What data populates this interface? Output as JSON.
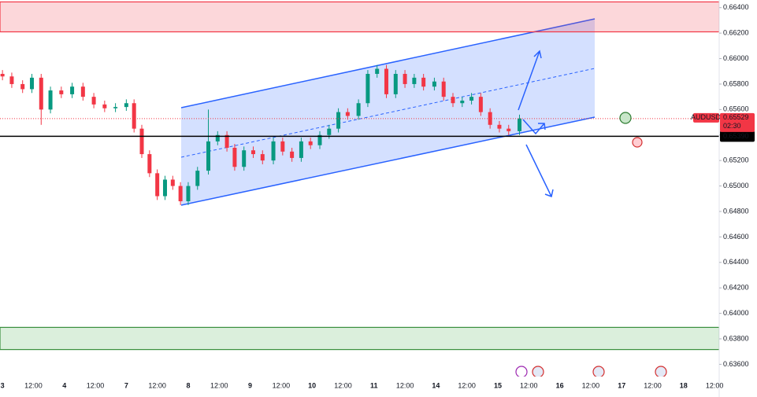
{
  "chart_data": {
    "type": "candlestick",
    "symbol": "AUDUSD",
    "categories": [
      "3",
      "12:00",
      "4",
      "12:00",
      "7",
      "12:00",
      "8",
      "12:00",
      "9",
      "12:00",
      "10",
      "12:00",
      "11",
      "12:00",
      "14",
      "12:00",
      "15",
      "12:00",
      "16",
      "12:00",
      "17",
      "12:00",
      "18",
      "12:00"
    ],
    "xlim": [
      -0.08,
      23.15
    ],
    "ylim": [
      0.6351,
      0.6646
    ],
    "yticks": [
      {
        "value": 0.664,
        "label": "0.66400"
      },
      {
        "value": 0.662,
        "label": "0.66200"
      },
      {
        "value": 0.66,
        "label": "0.66000"
      },
      {
        "value": 0.658,
        "label": "0.65800"
      },
      {
        "value": 0.656,
        "label": "0.65600"
      },
      {
        "value": 0.654,
        "label": "0.65400"
      },
      {
        "value": 0.652,
        "label": "0.65200"
      },
      {
        "value": 0.65,
        "label": "0.65000"
      },
      {
        "value": 0.648,
        "label": "0.64800"
      },
      {
        "value": 0.646,
        "label": "0.64600"
      },
      {
        "value": 0.644,
        "label": "0.64400"
      },
      {
        "value": 0.642,
        "label": "0.64200"
      },
      {
        "value": 0.64,
        "label": "0.64000"
      },
      {
        "value": 0.638,
        "label": "0.63800"
      },
      {
        "value": 0.636,
        "label": "0.63600"
      }
    ],
    "up_color": "#089981",
    "down_color": "#f23645",
    "candles": {
      "x": [
        0,
        0.3,
        0.65,
        0.95,
        1.25,
        1.55,
        1.9,
        2.25,
        2.6,
        2.95,
        3.3,
        3.65,
        4,
        4.25,
        4.5,
        4.75,
        5,
        5.25,
        5.5,
        5.75,
        6,
        6.3,
        6.65,
        6.95,
        7.25,
        7.5,
        7.8,
        8.1,
        8.4,
        8.75,
        9.05,
        9.35,
        9.65,
        9.95,
        10.25,
        10.55,
        10.85,
        11.15,
        11.5,
        11.8,
        12.1,
        12.4,
        12.7,
        13,
        13.3,
        13.6,
        13.95,
        14.25,
        14.55,
        14.85,
        15.15,
        15.45,
        15.75,
        16.05,
        16.35,
        16.7
      ],
      "open": [
        0.6588,
        0.6586,
        0.658,
        0.6576,
        0.6585,
        0.656,
        0.6575,
        0.6572,
        0.6578,
        0.657,
        0.6564,
        0.6561,
        0.6562,
        0.6565,
        0.6545,
        0.6525,
        0.651,
        0.6492,
        0.6505,
        0.65,
        0.6488,
        0.65,
        0.6512,
        0.6535,
        0.654,
        0.653,
        0.6515,
        0.6528,
        0.6525,
        0.652,
        0.6535,
        0.6527,
        0.6522,
        0.6535,
        0.6532,
        0.654,
        0.6545,
        0.6558,
        0.6555,
        0.6565,
        0.6588,
        0.6592,
        0.6572,
        0.6588,
        0.658,
        0.6585,
        0.6578,
        0.6582,
        0.657,
        0.6565,
        0.6567,
        0.657,
        0.6558,
        0.6548,
        0.6545,
        0.6543
      ],
      "high": [
        0.6591,
        0.6589,
        0.6583,
        0.6588,
        0.6588,
        0.6578,
        0.6578,
        0.6581,
        0.6581,
        0.6573,
        0.6567,
        0.6565,
        0.6568,
        0.6568,
        0.6548,
        0.6528,
        0.6513,
        0.6508,
        0.6508,
        0.6503,
        0.6503,
        0.6515,
        0.656,
        0.6543,
        0.6543,
        0.6533,
        0.6531,
        0.6531,
        0.6528,
        0.6538,
        0.6538,
        0.653,
        0.6538,
        0.6538,
        0.6543,
        0.6548,
        0.6561,
        0.6561,
        0.6568,
        0.6591,
        0.6595,
        0.6595,
        0.6591,
        0.6591,
        0.6588,
        0.6588,
        0.6585,
        0.6585,
        0.6573,
        0.657,
        0.6573,
        0.6573,
        0.6561,
        0.6551,
        0.6548,
        0.6556
      ],
      "low": [
        0.6583,
        0.6577,
        0.6573,
        0.6573,
        0.6548,
        0.6557,
        0.6569,
        0.6569,
        0.6567,
        0.6561,
        0.6558,
        0.6558,
        0.6559,
        0.6542,
        0.6522,
        0.6507,
        0.6489,
        0.6489,
        0.6497,
        0.6485,
        0.6485,
        0.6497,
        0.6509,
        0.6532,
        0.6527,
        0.6512,
        0.6512,
        0.6522,
        0.6517,
        0.6517,
        0.6524,
        0.6519,
        0.6519,
        0.6529,
        0.6529,
        0.6537,
        0.6542,
        0.6552,
        0.6552,
        0.6562,
        0.6585,
        0.6569,
        0.6569,
        0.6577,
        0.6577,
        0.6575,
        0.6575,
        0.6567,
        0.6562,
        0.6562,
        0.6564,
        0.6555,
        0.6545,
        0.6542,
        0.654,
        0.654
      ],
      "close": [
        0.6586,
        0.658,
        0.6576,
        0.6585,
        0.656,
        0.6575,
        0.6572,
        0.6578,
        0.657,
        0.6564,
        0.6561,
        0.6562,
        0.6565,
        0.6545,
        0.6525,
        0.651,
        0.6492,
        0.6505,
        0.65,
        0.6488,
        0.65,
        0.6512,
        0.6535,
        0.654,
        0.653,
        0.6515,
        0.6528,
        0.6525,
        0.652,
        0.6535,
        0.6527,
        0.6522,
        0.6535,
        0.6532,
        0.654,
        0.6545,
        0.6558,
        0.6555,
        0.6565,
        0.6588,
        0.6592,
        0.6572,
        0.6588,
        0.658,
        0.6585,
        0.6578,
        0.6582,
        0.657,
        0.6565,
        0.6567,
        0.657,
        0.6558,
        0.6548,
        0.6545,
        0.6543,
        0.6553
      ]
    },
    "last_price": {
      "value": 0.65529,
      "label": "0.65529",
      "countdown": "02:30"
    },
    "horizontal_line": {
      "value": 0.6539,
      "label": "0.65390"
    },
    "resistance_zone": [
      0.6621,
      0.66445
    ],
    "support_zone": [
      0.63716,
      0.6389
    ]
  }
}
